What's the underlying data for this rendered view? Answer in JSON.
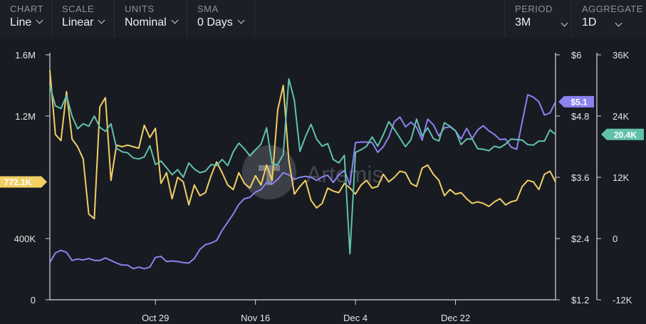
{
  "controls": {
    "chart": {
      "label": "CHART",
      "value": "Line"
    },
    "scale": {
      "label": "SCALE",
      "value": "Linear"
    },
    "units": {
      "label": "UNITS",
      "value": "Nominal"
    },
    "sma": {
      "label": "SMA",
      "value": "0 Days"
    },
    "period": {
      "label": "PERIOD",
      "value": "3M"
    },
    "aggregate": {
      "label": "AGGREGATE",
      "value": "1D"
    }
  },
  "watermark": "Artemis",
  "colors": {
    "purple": "#8c83f0",
    "yellow": "#f2cf63",
    "teal": "#62c1ad",
    "background": "#181b22"
  },
  "chart_data": {
    "type": "line",
    "x_tick_labels": [
      "Oct 29",
      "Nov 16",
      "Dec 4",
      "Dec 22"
    ],
    "x_tick_index": [
      19,
      37,
      55,
      73
    ],
    "n_points": 92,
    "axes": {
      "left": {
        "ticks": [
          "1.6M",
          "1.2M",
          "400K",
          "0"
        ],
        "tick_values": [
          1600000,
          1200000,
          400000,
          0
        ],
        "ylim": [
          0,
          1600000
        ]
      },
      "right1": {
        "ticks": [
          "$6",
          "$4.8",
          "$3.6",
          "$2.4",
          "$1.2"
        ],
        "tick_values": [
          6,
          4.8,
          3.6,
          2.4,
          1.2
        ],
        "ylim": [
          1.2,
          6
        ]
      },
      "right2": {
        "ticks": [
          "36K",
          "24K",
          "12K",
          "0",
          "-12K"
        ],
        "tick_values": [
          36000,
          24000,
          12000,
          0,
          -12000
        ],
        "ylim": [
          -12000,
          36000
        ]
      }
    },
    "series": [
      {
        "axis": "right1",
        "color": "#8c83f0",
        "badge": "$5.1",
        "values": [
          1.93,
          2.12,
          2.17,
          2.13,
          1.97,
          2.0,
          1.98,
          2.01,
          1.97,
          1.97,
          2.02,
          1.97,
          1.92,
          1.88,
          1.88,
          1.81,
          1.84,
          1.81,
          1.84,
          2.03,
          2.05,
          1.95,
          1.96,
          1.95,
          1.93,
          1.92,
          2.01,
          2.19,
          2.28,
          2.31,
          2.36,
          2.56,
          2.72,
          2.88,
          3.07,
          3.18,
          3.21,
          3.31,
          3.36,
          3.5,
          3.47,
          3.56,
          3.69,
          3.65,
          3.56,
          3.6,
          3.62,
          3.6,
          3.54,
          3.61,
          3.64,
          3.5,
          3.65,
          3.73,
          3.45,
          4.28,
          4.29,
          4.29,
          4.28,
          4.09,
          4.2,
          4.39,
          4.69,
          4.78,
          4.59,
          4.68,
          4.58,
          4.33,
          4.74,
          4.63,
          4.41,
          4.57,
          4.59,
          4.51,
          4.35,
          4.56,
          4.36,
          4.53,
          4.61,
          4.51,
          4.44,
          4.34,
          4.35,
          4.19,
          4.15,
          4.69,
          5.22,
          5.17,
          5.08,
          4.82,
          4.86,
          5.08
        ]
      },
      {
        "axis": "left",
        "color": "#f2cf63",
        "badge": "772.1K",
        "values": [
          1500000,
          1080000,
          1040000,
          1360000,
          1050000,
          1000000,
          920000,
          560000,
          530000,
          1260000,
          1320000,
          780000,
          1010000,
          1000000,
          1010000,
          1000000,
          990000,
          1140000,
          1060000,
          1120000,
          760000,
          830000,
          660000,
          800000,
          770000,
          620000,
          750000,
          680000,
          700000,
          810000,
          900000,
          830000,
          750000,
          720000,
          830000,
          760000,
          730000,
          810000,
          750000,
          880000,
          780000,
          1240000,
          1400000,
          910000,
          690000,
          740000,
          780000,
          650000,
          600000,
          630000,
          730000,
          710000,
          700000,
          760000,
          730000,
          690000,
          750000,
          780000,
          730000,
          740000,
          820000,
          770000,
          800000,
          840000,
          830000,
          760000,
          740000,
          860000,
          880000,
          820000,
          780000,
          680000,
          720000,
          690000,
          700000,
          660000,
          630000,
          640000,
          630000,
          610000,
          640000,
          660000,
          620000,
          640000,
          650000,
          740000,
          780000,
          770000,
          720000,
          820000,
          840000,
          770000
        ]
      },
      {
        "axis": "right2",
        "color": "#62c1ad",
        "badge": "20.4K",
        "values": [
          30000,
          26000,
          25500,
          28000,
          24000,
          21500,
          22500,
          22000,
          24000,
          21800,
          21000,
          22500,
          17700,
          17000,
          16800,
          15800,
          15600,
          16000,
          18200,
          14500,
          15200,
          13900,
          12500,
          13500,
          12000,
          14800,
          13600,
          12900,
          13200,
          14500,
          14300,
          15500,
          14300,
          17000,
          18700,
          17600,
          16200,
          17400,
          18500,
          21700,
          14600,
          14500,
          16500,
          31300,
          27100,
          17100,
          20000,
          22400,
          19500,
          18100,
          18600,
          15500,
          14800,
          16300,
          -3000,
          16900,
          17400,
          18100,
          19900,
          18100,
          20300,
          22900,
          21400,
          19700,
          18000,
          19400,
          23400,
          20100,
          21700,
          19600,
          19100,
          22700,
          22000,
          21100,
          18400,
          19500,
          19500,
          17600,
          17500,
          17200,
          18100,
          17800,
          18500,
          19500,
          19400,
          19300,
          18400,
          18300,
          19100,
          19100,
          21300,
          20400
        ]
      }
    ]
  }
}
